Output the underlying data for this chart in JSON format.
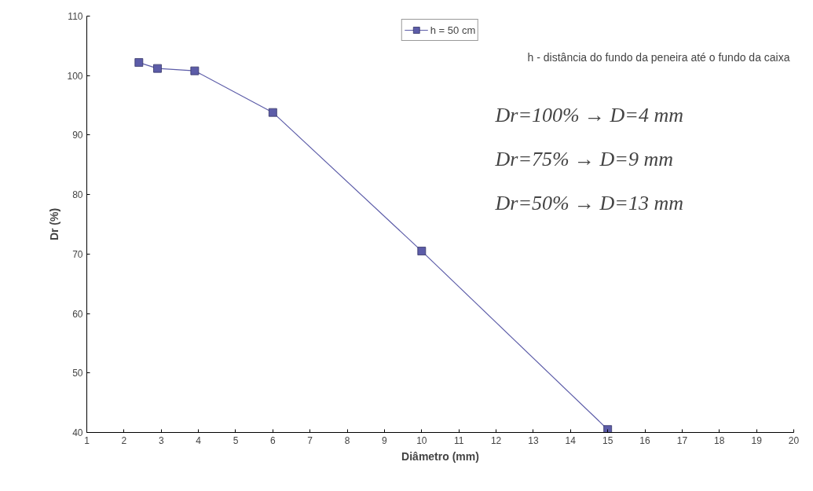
{
  "chart_data": {
    "type": "line",
    "xlabel": "Diâmetro (mm)",
    "ylabel": "Dr (%)",
    "x": [
      2.4,
      2.9,
      3.9,
      6,
      10,
      15
    ],
    "series": [
      {
        "name": "h = 50 cm",
        "color": "#5c5ca8",
        "values": [
          102.2,
          101.2,
          100.8,
          93.8,
          70.5,
          40.5
        ]
      }
    ],
    "xlim": [
      1,
      20
    ],
    "xticks": [
      1,
      2,
      3,
      4,
      5,
      6,
      7,
      8,
      9,
      10,
      11,
      12,
      13,
      14,
      15,
      16,
      17,
      18,
      19,
      20
    ],
    "ylim": [
      40,
      110
    ],
    "yticks": [
      40,
      50,
      60,
      70,
      80,
      90,
      100,
      110
    ],
    "grid": false,
    "legend": "top",
    "marker": "square",
    "line_style": "solid",
    "annotations": [
      "h - distância do fundo da peneira até o fundo da caixa",
      "Dr=100% → D=4 mm",
      "Dr=75% → D=9 mm",
      "Dr=50% → D=13 mm"
    ]
  }
}
